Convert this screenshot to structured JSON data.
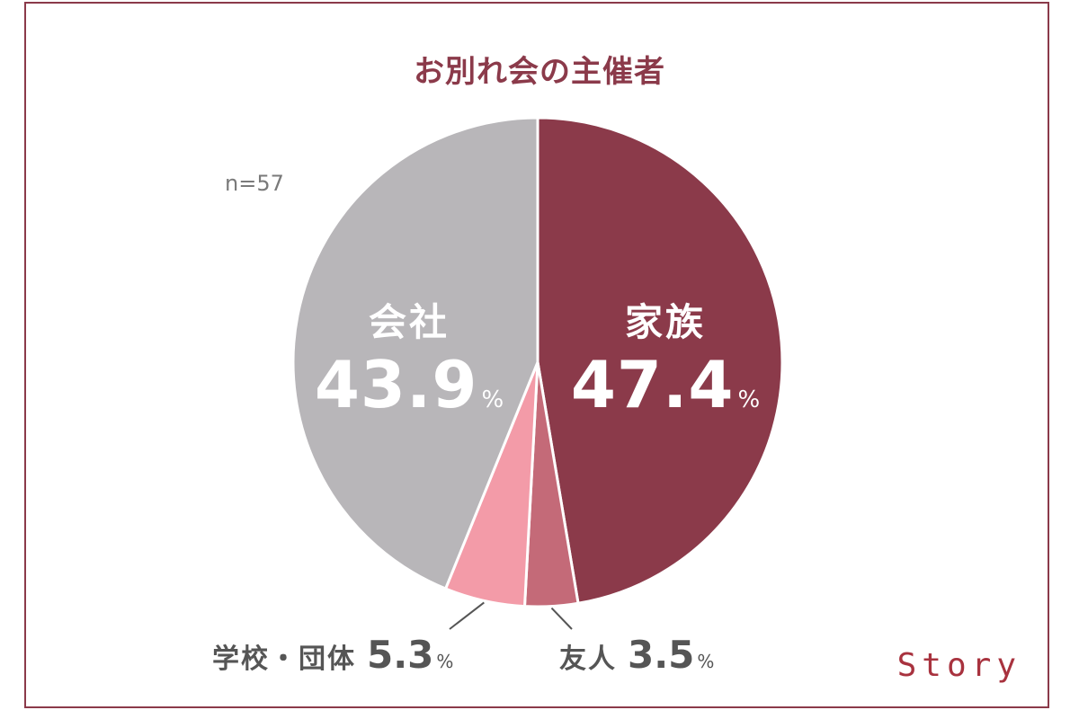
{
  "chart_data": {
    "type": "pie",
    "title": "お別れ会の主催者",
    "sample_size": "n=57",
    "unit": "%",
    "start_angle_deg": 0,
    "direction": "clockwise",
    "slices": [
      {
        "label": "家族",
        "value": 47.4,
        "value_text": "47.4",
        "color": "#8b3a4a"
      },
      {
        "label": "友人",
        "value": 3.5,
        "value_text": "3.5",
        "color": "#c46a78"
      },
      {
        "label": "学校・団体",
        "value": 5.3,
        "value_text": "5.3",
        "color": "#f39ba8"
      },
      {
        "label": "会社",
        "value": 43.9,
        "value_text": "43.9",
        "color": "#b8b6b9"
      }
    ]
  },
  "brand": "Story"
}
